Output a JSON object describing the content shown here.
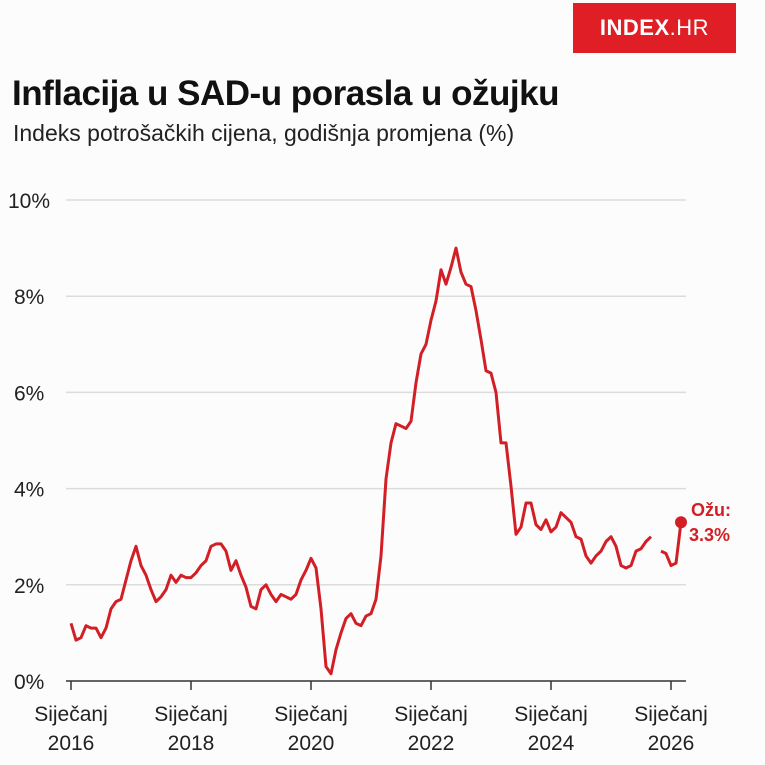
{
  "logo": {
    "text": "INDEX",
    "suffix": ".HR"
  },
  "colors": {
    "line": "#d21f26",
    "brand": "#e01e26"
  },
  "chart_data": {
    "type": "line",
    "title": "Inflacija u SAD-u porasla u ožujku",
    "subtitle": "Indeks potrošačkih cijena, godišnja promjena (%)",
    "xlabel": "",
    "ylabel": "",
    "ylim": [
      0,
      10
    ],
    "yticks": [
      {
        "v": 0,
        "label": "0%"
      },
      {
        "v": 2,
        "label": "2%"
      },
      {
        "v": 4,
        "label": "4%"
      },
      {
        "v": 6,
        "label": "6%"
      },
      {
        "v": 8,
        "label": "8%"
      },
      {
        "v": 10,
        "label": "10%"
      }
    ],
    "xticks": [
      {
        "m": 0,
        "l1": "Siječanj",
        "l2": "2016"
      },
      {
        "m": 24,
        "l1": "Siječanj",
        "l2": "2018"
      },
      {
        "m": 48,
        "l1": "Siječanj",
        "l2": "2020"
      },
      {
        "m": 72,
        "l1": "Siječanj",
        "l2": "2022"
      },
      {
        "m": 96,
        "l1": "Siječanj",
        "l2": "2024"
      },
      {
        "m": 120,
        "l1": "Siječanj",
        "l2": "2026"
      }
    ],
    "x_start": "2016-01",
    "x_unit": "month",
    "values": [
      1.2,
      0.85,
      0.9,
      1.15,
      1.1,
      1.1,
      0.9,
      1.1,
      1.5,
      1.65,
      1.7,
      2.1,
      2.5,
      2.8,
      2.4,
      2.2,
      1.9,
      1.65,
      1.75,
      1.9,
      2.2,
      2.05,
      2.2,
      2.15,
      2.15,
      2.25,
      2.4,
      2.5,
      2.8,
      2.85,
      2.85,
      2.7,
      2.3,
      2.5,
      2.2,
      1.95,
      1.55,
      1.5,
      1.9,
      2.0,
      1.8,
      1.65,
      1.8,
      1.75,
      1.7,
      1.8,
      2.1,
      2.3,
      2.55,
      2.35,
      1.5,
      0.3,
      0.15,
      0.65,
      1.0,
      1.3,
      1.4,
      1.2,
      1.15,
      1.35,
      1.4,
      1.7,
      2.6,
      4.2,
      4.95,
      5.35,
      5.3,
      5.25,
      5.4,
      6.2,
      6.8,
      7.0,
      7.5,
      7.9,
      8.55,
      8.25,
      8.6,
      9.0,
      8.5,
      8.25,
      8.2,
      7.7,
      7.1,
      6.45,
      6.4,
      6.0,
      4.95,
      4.95,
      4.05,
      3.05,
      3.2,
      3.7,
      3.7,
      3.25,
      3.15,
      3.35,
      3.1,
      3.2,
      3.5,
      3.4,
      3.3,
      3.0,
      2.95,
      2.6,
      2.45,
      2.6,
      2.7,
      2.9,
      3.0,
      2.8,
      2.4,
      2.35,
      2.4,
      2.7,
      2.75,
      2.9,
      3.0,
      null,
      2.7,
      2.65,
      2.4,
      2.45,
      3.3
    ],
    "annotation": {
      "label": "Ožu:",
      "value": "3.3%"
    }
  }
}
